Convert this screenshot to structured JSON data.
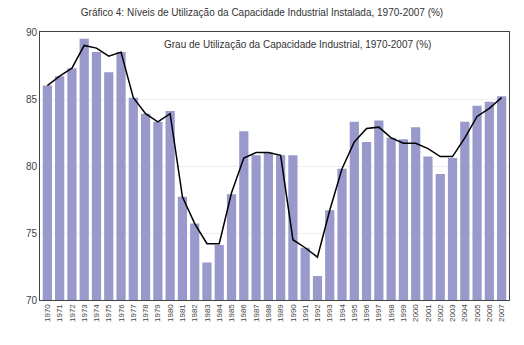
{
  "chart_data": {
    "type": "bar",
    "title": "Gráfico 4: Níveis de Utilização da Capacidade Industrial Instalada, 1970-2007 (%)",
    "annotations": [
      "Grau de Utilização da Capacidade Industrial, 1970-2007 (%)"
    ],
    "x": [
      1970,
      1971,
      1972,
      1973,
      1974,
      1975,
      1976,
      1977,
      1978,
      1979,
      1980,
      1981,
      1982,
      1983,
      1984,
      1985,
      1986,
      1987,
      1988,
      1989,
      1990,
      1991,
      1992,
      1993,
      1994,
      1995,
      1996,
      1997,
      1998,
      1999,
      2000,
      2001,
      2002,
      2003,
      2004,
      2005,
      2006,
      2007
    ],
    "series": [
      {
        "type": "bar",
        "color": "#9999cc",
        "values": [
          86.0,
          86.7,
          87.3,
          89.5,
          88.5,
          87.0,
          88.5,
          85.1,
          83.9,
          83.3,
          84.1,
          77.7,
          75.7,
          72.8,
          74.1,
          77.9,
          82.6,
          80.8,
          81.0,
          80.8,
          80.8,
          73.9,
          71.8,
          76.7,
          79.8,
          83.3,
          81.8,
          83.4,
          82.1,
          82.0,
          82.9,
          80.7,
          79.4,
          80.6,
          83.3,
          84.5,
          84.8,
          85.2
        ]
      },
      {
        "type": "line",
        "color": "#000000",
        "values": [
          86.0,
          86.7,
          87.3,
          89.0,
          88.8,
          88.2,
          88.5,
          85.1,
          83.9,
          83.3,
          83.9,
          77.7,
          75.7,
          74.2,
          74.2,
          78.0,
          80.6,
          81.0,
          81.0,
          80.8,
          74.5,
          73.9,
          73.2,
          76.7,
          79.8,
          81.8,
          82.8,
          82.9,
          82.1,
          81.7,
          81.7,
          81.3,
          80.7,
          80.7,
          82.1,
          83.7,
          84.3,
          85.1
        ]
      }
    ],
    "xlim": [
      1969.4,
      2007.6
    ],
    "xticks": [
      1970,
      1971,
      1972,
      1973,
      1974,
      1975,
      1976,
      1977,
      1978,
      1979,
      1980,
      1981,
      1982,
      1983,
      1984,
      1985,
      1986,
      1987,
      1988,
      1989,
      1990,
      1991,
      1992,
      1993,
      1994,
      1995,
      1996,
      1997,
      1998,
      1999,
      2000,
      2001,
      2002,
      2003,
      2004,
      2005,
      2006,
      2007
    ],
    "ylim": [
      70,
      90
    ],
    "yticks": [
      70,
      75,
      80,
      85,
      90
    ],
    "grid": true
  }
}
